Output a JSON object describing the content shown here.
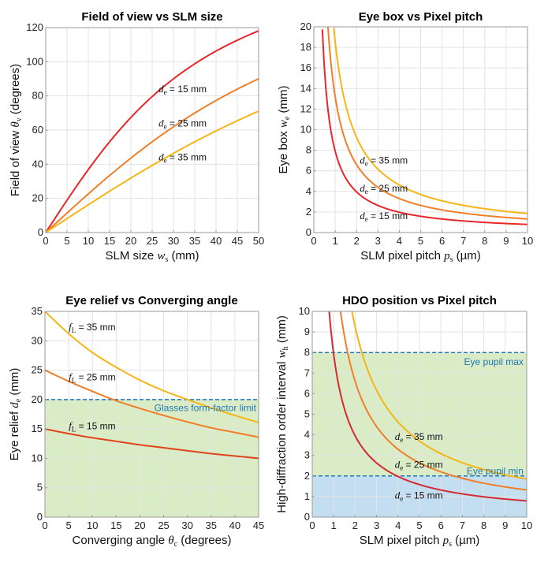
{
  "chart_data": [
    {
      "id": "fov",
      "type": "line",
      "title": "Field of view vs SLM size",
      "xlabel": "SLM size",
      "xlabel_var": "w",
      "xlabel_sub": "s",
      "xlabel_unit": "(mm)",
      "ylabel": "Field of view",
      "ylabel_var": "θ",
      "ylabel_sub": "v",
      "ylabel_unit": "(degrees)",
      "xlim": [
        0,
        50
      ],
      "ylim": [
        0,
        120
      ],
      "xticks": [
        0,
        5,
        10,
        15,
        20,
        25,
        30,
        35,
        40,
        45,
        50
      ],
      "yticks": [
        0,
        20,
        40,
        60,
        80,
        100,
        120
      ],
      "grid": true,
      "formula": "fov",
      "series": [
        {
          "name": "d_e = 15 mm",
          "param": 15,
          "color": "#e8272a",
          "x": [
            0,
            5,
            10,
            15,
            20,
            25,
            30,
            35,
            40,
            45,
            50
          ],
          "y": [
            0,
            18.9,
            36.9,
            53.1,
            67.4,
            79.6,
            90.0,
            98.8,
            106.3,
            112.6,
            118.1
          ]
        },
        {
          "name": "d_e = 25 mm",
          "param": 25,
          "color": "#f07f2a",
          "x": [
            0,
            5,
            10,
            15,
            20,
            25,
            30,
            35,
            40,
            45,
            50
          ],
          "y": [
            0,
            11.4,
            22.6,
            33.4,
            43.6,
            53.1,
            61.9,
            70.0,
            77.3,
            84.0,
            90.0
          ]
        },
        {
          "name": "d_e = 35 mm",
          "param": 35,
          "color": "#f5b516",
          "x": [
            0,
            5,
            10,
            15,
            20,
            25,
            30,
            35,
            40,
            45,
            50
          ],
          "y": [
            0,
            8.2,
            16.3,
            24.2,
            31.9,
            39.3,
            46.4,
            53.1,
            59.5,
            65.5,
            71.1
          ]
        }
      ],
      "annotations": [
        {
          "var": "d",
          "sub": "e",
          "text": " = 15 mm",
          "x": 26.5,
          "y": 84
        },
        {
          "var": "d",
          "sub": "e",
          "text": " = 25 mm",
          "x": 26.5,
          "y": 64
        },
        {
          "var": "d",
          "sub": "e",
          "text": " = 35 mm",
          "x": 26.5,
          "y": 44
        }
      ]
    },
    {
      "id": "eyebox",
      "type": "line",
      "title": "Eye box vs Pixel pitch",
      "xlabel": "SLM pixel pitch",
      "xlabel_var": "p",
      "xlabel_sub": "s",
      "xlabel_unit": "(µm)",
      "ylabel": "Eye box",
      "ylabel_var": "w",
      "ylabel_sub": "e",
      "ylabel_unit": "(mm)",
      "xlim": [
        0,
        10
      ],
      "ylim": [
        0,
        20
      ],
      "xticks": [
        0,
        1,
        2,
        3,
        4,
        5,
        6,
        7,
        8,
        9,
        10
      ],
      "yticks": [
        0,
        2,
        4,
        6,
        8,
        10,
        12,
        14,
        16,
        18,
        20
      ],
      "grid": true,
      "formula": "inverse",
      "series": [
        {
          "name": "d_e = 15 mm",
          "param": 15,
          "color": "#e8272a",
          "k": 7.9,
          "x": [
            0.4,
            0.5,
            1,
            2,
            3,
            4,
            5,
            6,
            7,
            8,
            9,
            10
          ],
          "y": [
            19.75,
            15.8,
            7.9,
            3.95,
            2.63,
            1.98,
            1.58,
            1.32,
            1.13,
            0.99,
            0.88,
            0.79
          ]
        },
        {
          "name": "d_e = 25 mm",
          "param": 25,
          "color": "#f07f2a",
          "k": 13.2,
          "x": [
            0.66,
            1,
            2,
            3,
            4,
            5,
            6,
            7,
            8,
            9,
            10
          ],
          "y": [
            20,
            13.2,
            6.6,
            4.4,
            3.3,
            2.64,
            2.2,
            1.89,
            1.65,
            1.47,
            1.32
          ]
        },
        {
          "name": "d_e = 35 mm",
          "param": 35,
          "color": "#f5b516",
          "k": 18.5,
          "x": [
            0.93,
            1,
            2,
            3,
            4,
            5,
            6,
            7,
            8,
            9,
            10
          ],
          "y": [
            20,
            18.5,
            9.25,
            6.17,
            4.63,
            3.7,
            3.08,
            2.64,
            2.31,
            2.06,
            1.85
          ]
        }
      ],
      "annotations": [
        {
          "var": "d",
          "sub": "e",
          "text": " = 35 mm",
          "x": 2.15,
          "y": 7.0
        },
        {
          "var": "d",
          "sub": "e",
          "text": " = 25 mm",
          "x": 2.15,
          "y": 4.3
        },
        {
          "var": "d",
          "sub": "e",
          "text": " = 15 mm",
          "x": 2.15,
          "y": 1.6
        }
      ]
    },
    {
      "id": "eyerelief",
      "type": "line",
      "title": "Eye relief vs Converging angle",
      "xlabel": "Converging angle",
      "xlabel_var": "θ",
      "xlabel_sub": "c",
      "xlabel_unit": "(degrees)",
      "ylabel": "Eye relief",
      "ylabel_var": "d",
      "ylabel_sub": "e",
      "ylabel_unit": "(mm)",
      "xlim": [
        0,
        45
      ],
      "ylim": [
        0,
        35
      ],
      "xticks": [
        0,
        5,
        10,
        15,
        20,
        25,
        30,
        35,
        40,
        45
      ],
      "yticks": [
        0,
        5,
        10,
        15,
        20,
        25,
        30,
        35
      ],
      "grid": true,
      "formula": "relief",
      "regions": [
        {
          "name": "feasible-region",
          "y0": 0,
          "y1": 20,
          "color": "#d9ecc6"
        }
      ],
      "reference_lines": [
        {
          "name": "Glasses form-factor limit",
          "y": 20,
          "color": "#1f78b4",
          "label_x": 44.5,
          "label_y": 18.6,
          "anchor": "end"
        }
      ],
      "series": [
        {
          "name": "f_L = 15 mm",
          "param": 15,
          "color": "#e0421c",
          "x": [
            0,
            5,
            10,
            15,
            20,
            25,
            30,
            35,
            40,
            45
          ],
          "y": [
            15.0,
            14.2,
            13.5,
            12.9,
            12.3,
            11.8,
            11.3,
            10.8,
            10.4,
            10.0
          ]
        },
        {
          "name": "f_L = 25 mm",
          "param": 25,
          "color": "#f07f2a",
          "x": [
            0,
            5,
            10,
            15,
            20,
            25,
            30,
            35,
            40,
            45
          ],
          "y": [
            25.0,
            23.1,
            21.4,
            19.8,
            18.5,
            17.3,
            16.2,
            15.2,
            14.4,
            13.6
          ]
        },
        {
          "name": "f_L = 35 mm",
          "param": 35,
          "color": "#f5b516",
          "x": [
            0,
            5,
            10,
            15,
            20,
            25,
            30,
            35,
            40,
            45
          ],
          "y": [
            35.0,
            31.2,
            28.0,
            25.5,
            23.3,
            21.5,
            20.0,
            18.6,
            17.3,
            16.1
          ]
        }
      ],
      "annotations": [
        {
          "var": "f",
          "sub": "L",
          "text": " = 35 mm",
          "x": 5,
          "y": 32.3
        },
        {
          "var": "f",
          "sub": "L",
          "text": " = 25 mm",
          "x": 5,
          "y": 23.8
        },
        {
          "var": "f",
          "sub": "L",
          "text": " = 15 mm",
          "x": 5,
          "y": 15.5
        }
      ]
    },
    {
      "id": "hdo",
      "type": "line",
      "title": "HDO position vs Pixel pitch",
      "xlabel": "SLM pixel pitch",
      "xlabel_var": "p",
      "xlabel_sub": "s",
      "xlabel_unit": "(µm)",
      "ylabel": "High-diffraction order interval",
      "ylabel_var": "w",
      "ylabel_sub": "h",
      "ylabel_unit": "(mm)",
      "xlim": [
        0,
        10
      ],
      "ylim": [
        0,
        10
      ],
      "xticks": [
        0,
        1,
        2,
        3,
        4,
        5,
        6,
        7,
        8,
        9,
        10
      ],
      "yticks": [
        0,
        1,
        2,
        3,
        4,
        5,
        6,
        7,
        8,
        9,
        10
      ],
      "grid": true,
      "formula": "inverse",
      "regions": [
        {
          "name": "pupil-range-region",
          "y0": 2,
          "y1": 8,
          "color": "#d9ecc6"
        },
        {
          "name": "below-pupil-region",
          "y0": 0,
          "y1": 2,
          "color": "#c3def0"
        }
      ],
      "reference_lines": [
        {
          "name": "Eye pupil max",
          "y": 8,
          "color": "#1f78b4",
          "label_x": 9.85,
          "label_y": 7.55,
          "anchor": "end"
        },
        {
          "name": "Eye pupil min",
          "y": 2,
          "color": "#1f78b4",
          "label_x": 9.85,
          "label_y": 2.25,
          "anchor": "end"
        }
      ],
      "series": [
        {
          "name": "d_e = 15 mm",
          "param": 15,
          "color": "#d42a32",
          "k": 7.9,
          "x": [
            0.79,
            1,
            2,
            3,
            4,
            5,
            6,
            7,
            8,
            9,
            10
          ],
          "y": [
            10,
            7.9,
            3.95,
            2.63,
            1.98,
            1.58,
            1.32,
            1.13,
            0.99,
            0.88,
            0.79
          ]
        },
        {
          "name": "d_e = 25 mm",
          "param": 25,
          "color": "#f07f2a",
          "k": 13.2,
          "x": [
            1.32,
            2,
            3,
            4,
            5,
            6,
            7,
            8,
            9,
            10
          ],
          "y": [
            10,
            6.6,
            4.4,
            3.3,
            2.64,
            2.2,
            1.89,
            1.65,
            1.47,
            1.32
          ]
        },
        {
          "name": "d_e = 35 mm",
          "param": 35,
          "color": "#f5b516",
          "k": 18.5,
          "x": [
            1.85,
            2,
            3,
            4,
            5,
            6,
            7,
            8,
            9,
            10
          ],
          "y": [
            10,
            9.25,
            6.17,
            4.63,
            3.7,
            3.08,
            2.64,
            2.31,
            2.06,
            1.85
          ]
        }
      ],
      "annotations": [
        {
          "var": "d",
          "sub": "e",
          "text": " = 35 mm",
          "x": 3.85,
          "y": 3.9
        },
        {
          "var": "d",
          "sub": "e",
          "text": " = 25 mm",
          "x": 3.85,
          "y": 2.55
        },
        {
          "var": "d",
          "sub": "e",
          "text": " = 15 mm",
          "x": 3.85,
          "y": 1.05
        }
      ]
    }
  ]
}
